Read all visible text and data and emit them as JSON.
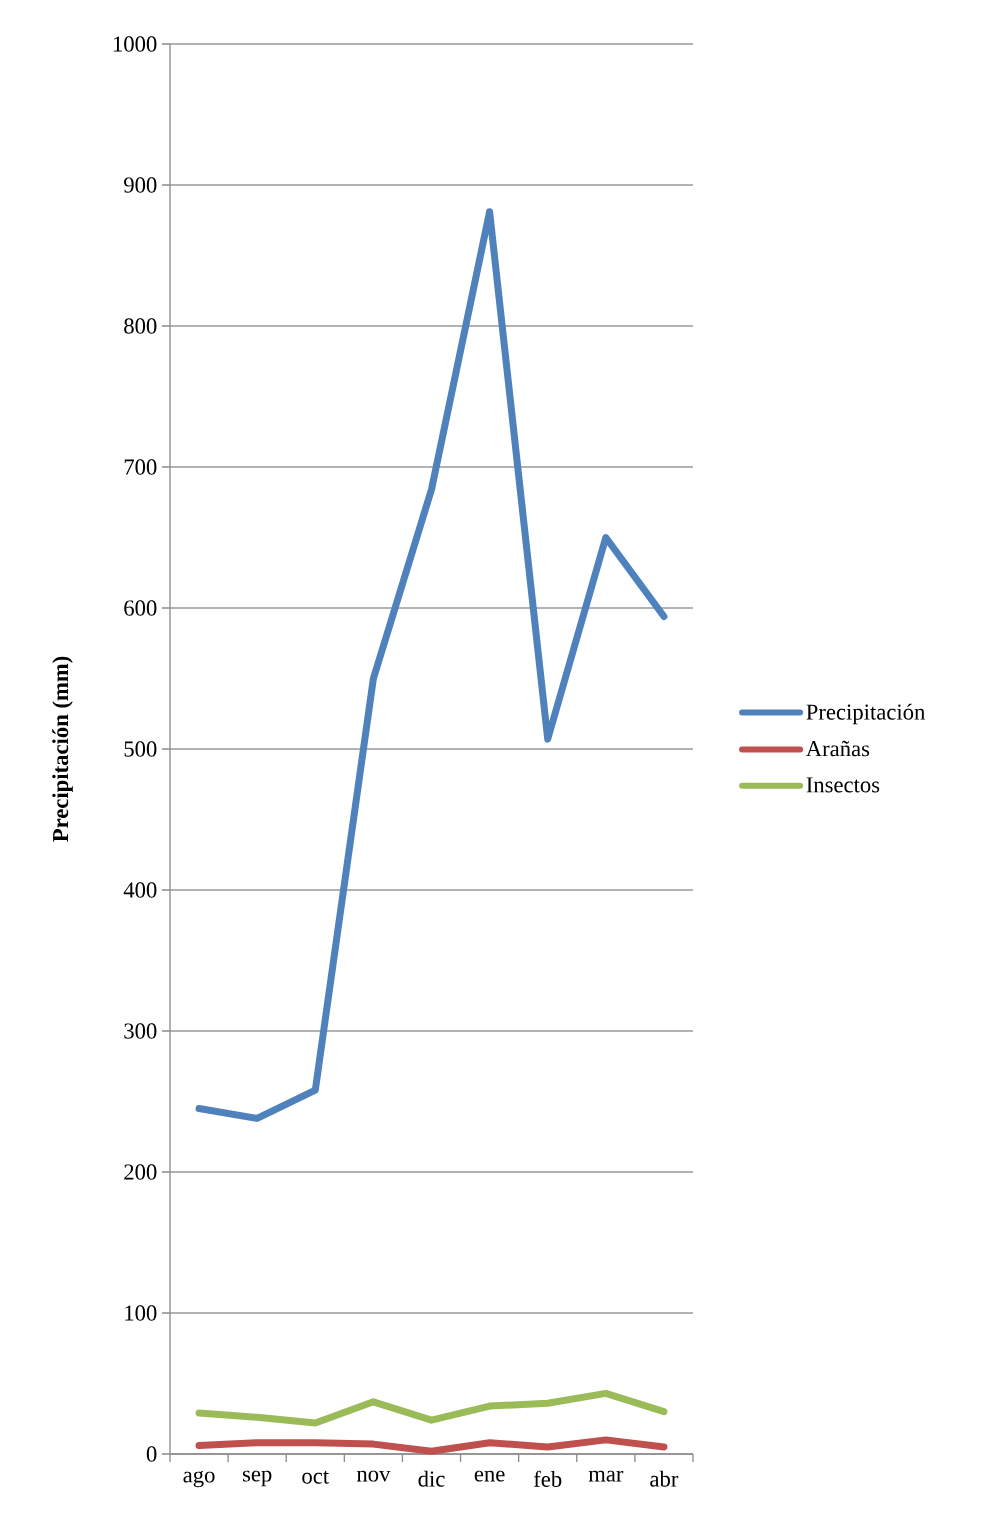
{
  "chart_data": {
    "type": "line",
    "ylabel": "Precipitación (mm)",
    "categories": [
      "ago",
      "sep",
      "oct",
      "nov",
      "dic",
      "ene",
      "feb",
      "mar",
      "abr"
    ],
    "series": [
      {
        "name": "Precipitación",
        "color": "#4f81bd",
        "values": [
          245,
          238,
          258,
          550,
          684,
          881,
          507,
          650,
          594
        ]
      },
      {
        "name": "Arañas",
        "color": "#c0504d",
        "values": [
          6,
          8,
          8,
          7,
          2,
          8,
          5,
          10,
          5
        ]
      },
      {
        "name": "Insectos",
        "color": "#9bbb59",
        "values": [
          29,
          26,
          22,
          37,
          24,
          34,
          36,
          43,
          30
        ]
      }
    ],
    "ylim": [
      0,
      1000
    ],
    "yticks": [
      0,
      100,
      200,
      300,
      400,
      500,
      600,
      700,
      800,
      900,
      1000
    ],
    "grid": "y",
    "legend": "right"
  }
}
